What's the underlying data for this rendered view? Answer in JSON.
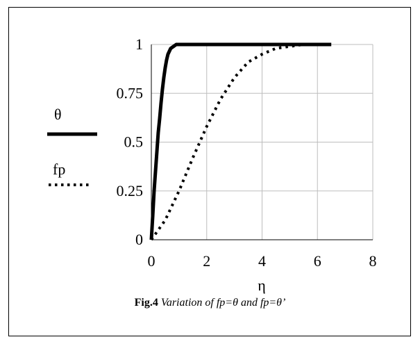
{
  "chart_data": {
    "type": "line",
    "xlabel": "η",
    "ylabel": "",
    "xlim": [
      0,
      8
    ],
    "ylim": [
      0,
      1
    ],
    "x_ticks": [
      "0",
      "2",
      "4",
      "6",
      "8"
    ],
    "y_ticks": [
      "0",
      "0.25",
      "0.5",
      "0.75",
      "1"
    ],
    "grid": true,
    "legend_position": "left",
    "series": [
      {
        "name": "θ",
        "style": "solid",
        "color": "#000000",
        "x": [
          0,
          0.05,
          0.1,
          0.15,
          0.2,
          0.25,
          0.3,
          0.35,
          0.4,
          0.45,
          0.5,
          0.55,
          0.6,
          0.7,
          0.8,
          0.9,
          1.0,
          2,
          4,
          6.5
        ],
        "y": [
          0,
          0.12,
          0.25,
          0.35,
          0.45,
          0.55,
          0.62,
          0.7,
          0.77,
          0.83,
          0.88,
          0.92,
          0.95,
          0.98,
          0.99,
          1.0,
          1.0,
          1.0,
          1.0,
          1.0
        ]
      },
      {
        "name": "fp",
        "style": "dotted",
        "color": "#000000",
        "x": [
          0,
          0.5,
          1.0,
          1.5,
          2.0,
          2.5,
          3.0,
          3.5,
          4.0,
          4.5,
          5.0,
          5.5,
          6.0,
          6.5
        ],
        "y": [
          0,
          0.1,
          0.25,
          0.42,
          0.58,
          0.72,
          0.83,
          0.91,
          0.95,
          0.98,
          0.99,
          1.0,
          1.0,
          1.0
        ]
      }
    ]
  },
  "caption": {
    "fig": "Fig.4",
    "desc": " Variation of fp=θ and fp=θ’"
  }
}
